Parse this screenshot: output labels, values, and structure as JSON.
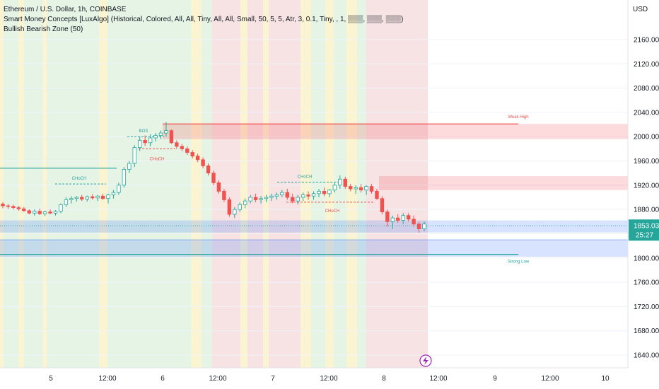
{
  "legend": {
    "symbol": "Ethereum / U.S. Dollar, 1h, COINBASE",
    "indicator1": "Smart Money Concepts [LuxAlgo] (Historical, Colored, All, All, Tiny, All, All, Small, 50, 5, 5, Atr, 3, 0.1, Tiny, , 1, ▒▒▒, ▒▒▒, ▒▒▒)",
    "indicator2": "Bullish Bearish Zone (50)"
  },
  "axis": {
    "currency": "USD",
    "price_labels": [
      "2160.00",
      "2120.00",
      "2080.00",
      "2040.00",
      "2000.00",
      "1960.00",
      "1920.00",
      "1880.00",
      "1840.00",
      "1800.00",
      "1760.00",
      "1720.00",
      "1680.00",
      "1640.00"
    ],
    "time_labels": [
      "5",
      "12:00",
      "6",
      "12:00",
      "7",
      "12:00",
      "8",
      "12:00",
      "9",
      "12:00",
      "10"
    ]
  },
  "last_price": {
    "price": "1853.03",
    "countdown": "25:27"
  },
  "annotations": {
    "weak_high": "Weak High",
    "strong_low": "Strong Low",
    "choch": "CHoCH",
    "bos": "BOS"
  },
  "colors": {
    "bull": "#26a69a",
    "bear": "#ef5350",
    "zone_bear": "rgba(242,54,69,0.18)",
    "zone_bull": "rgba(41,98,255,0.18)",
    "bg_green": "#e6f4e6",
    "bg_red": "#f7e3e3",
    "bg_yellow": "#fbf4d2"
  },
  "chart_data": {
    "type": "candlestick",
    "symbol": "ETHUSD",
    "timeframe": "1h",
    "ylim": [
      1620,
      2200
    ],
    "yticks": [
      2160,
      2120,
      2080,
      2040,
      2000,
      1960,
      1920,
      1880,
      1840,
      1800,
      1760,
      1720,
      1680,
      1640
    ],
    "last_price": 1853.03,
    "zones": [
      {
        "type": "bear",
        "label": "Weak High",
        "low": 1996,
        "high": 2021
      },
      {
        "type": "bear",
        "low": 1912,
        "high": 1935
      },
      {
        "type": "bull",
        "low": 1842,
        "high": 1862
      },
      {
        "type": "bull",
        "low": 1802,
        "high": 1830
      },
      {
        "type": "bull",
        "label": "Strong Low",
        "low": 1804,
        "high": 1806
      }
    ],
    "structure": [
      {
        "label": "CHoCH",
        "type": "bull",
        "level": 1922
      },
      {
        "label": "BOS",
        "type": "bull",
        "level": 2000
      },
      {
        "label": "CHoCH",
        "type": "bear",
        "level": 1980
      },
      {
        "label": "CHoCH",
        "type": "bull",
        "level": 1925
      },
      {
        "label": "CHoCH",
        "type": "bear",
        "level": 1892
      }
    ],
    "candles_ohlc": [
      [
        1889,
        1892,
        1882,
        1886
      ],
      [
        1886,
        1889,
        1881,
        1885
      ],
      [
        1885,
        1888,
        1880,
        1883
      ],
      [
        1883,
        1886,
        1878,
        1881
      ],
      [
        1881,
        1884,
        1876,
        1878
      ],
      [
        1878,
        1880,
        1872,
        1874
      ],
      [
        1874,
        1880,
        1870,
        1877
      ],
      [
        1877,
        1881,
        1871,
        1873
      ],
      [
        1873,
        1878,
        1869,
        1876
      ],
      [
        1876,
        1880,
        1872,
        1874
      ],
      [
        1874,
        1879,
        1870,
        1877
      ],
      [
        1877,
        1890,
        1874,
        1888
      ],
      [
        1888,
        1900,
        1884,
        1896
      ],
      [
        1896,
        1902,
        1890,
        1898
      ],
      [
        1898,
        1902,
        1893,
        1900
      ],
      [
        1900,
        1904,
        1894,
        1897
      ],
      [
        1897,
        1903,
        1893,
        1901
      ],
      [
        1901,
        1905,
        1896,
        1899
      ],
      [
        1899,
        1904,
        1894,
        1902
      ],
      [
        1902,
        1906,
        1896,
        1898
      ],
      [
        1898,
        1906,
        1890,
        1904
      ],
      [
        1904,
        1912,
        1898,
        1908
      ],
      [
        1908,
        1924,
        1904,
        1920
      ],
      [
        1920,
        1950,
        1916,
        1946
      ],
      [
        1946,
        1960,
        1940,
        1956
      ],
      [
        1956,
        1986,
        1950,
        1982
      ],
      [
        1982,
        2000,
        1976,
        1994
      ],
      [
        1994,
        2002,
        1985,
        1990
      ],
      [
        1990,
        2004,
        1984,
        1998
      ],
      [
        1998,
        2006,
        1992,
        2002
      ],
      [
        2002,
        2010,
        1996,
        2006
      ],
      [
        2006,
        2024,
        2000,
        2010
      ],
      [
        2010,
        2012,
        1988,
        1990
      ],
      [
        1990,
        1994,
        1980,
        1984
      ],
      [
        1984,
        1988,
        1976,
        1980
      ],
      [
        1980,
        1984,
        1970,
        1974
      ],
      [
        1974,
        1978,
        1964,
        1968
      ],
      [
        1968,
        1972,
        1958,
        1962
      ],
      [
        1962,
        1966,
        1948,
        1952
      ],
      [
        1952,
        1956,
        1936,
        1940
      ],
      [
        1940,
        1944,
        1920,
        1924
      ],
      [
        1924,
        1928,
        1906,
        1910
      ],
      [
        1910,
        1914,
        1892,
        1896
      ],
      [
        1896,
        1900,
        1868,
        1872
      ],
      [
        1872,
        1884,
        1866,
        1880
      ],
      [
        1880,
        1892,
        1876,
        1888
      ],
      [
        1888,
        1898,
        1882,
        1894
      ],
      [
        1894,
        1904,
        1890,
        1900
      ],
      [
        1900,
        1906,
        1892,
        1896
      ],
      [
        1896,
        1902,
        1890,
        1898
      ],
      [
        1898,
        1904,
        1892,
        1900
      ],
      [
        1900,
        1906,
        1894,
        1902
      ],
      [
        1902,
        1908,
        1896,
        1904
      ],
      [
        1904,
        1912,
        1900,
        1908
      ],
      [
        1908,
        1914,
        1896,
        1900
      ],
      [
        1900,
        1906,
        1890,
        1894
      ],
      [
        1894,
        1904,
        1888,
        1900
      ],
      [
        1900,
        1908,
        1894,
        1904
      ],
      [
        1904,
        1910,
        1896,
        1902
      ],
      [
        1902,
        1910,
        1896,
        1906
      ],
      [
        1906,
        1914,
        1900,
        1910
      ],
      [
        1910,
        1916,
        1902,
        1906
      ],
      [
        1906,
        1914,
        1900,
        1912
      ],
      [
        1912,
        1924,
        1908,
        1920
      ],
      [
        1920,
        1936,
        1914,
        1930
      ],
      [
        1930,
        1934,
        1914,
        1918
      ],
      [
        1918,
        1922,
        1910,
        1914
      ],
      [
        1914,
        1920,
        1906,
        1916
      ],
      [
        1916,
        1922,
        1908,
        1912
      ],
      [
        1912,
        1920,
        1904,
        1918
      ],
      [
        1918,
        1922,
        1906,
        1910
      ],
      [
        1910,
        1914,
        1896,
        1898
      ],
      [
        1898,
        1902,
        1872,
        1876
      ],
      [
        1876,
        1880,
        1852,
        1860
      ],
      [
        1860,
        1870,
        1848,
        1866
      ],
      [
        1866,
        1872,
        1858,
        1862
      ],
      [
        1862,
        1874,
        1856,
        1870
      ],
      [
        1870,
        1874,
        1860,
        1864
      ],
      [
        1864,
        1870,
        1852,
        1856
      ],
      [
        1856,
        1860,
        1842,
        1848
      ],
      [
        1848,
        1860,
        1844,
        1856
      ]
    ]
  }
}
